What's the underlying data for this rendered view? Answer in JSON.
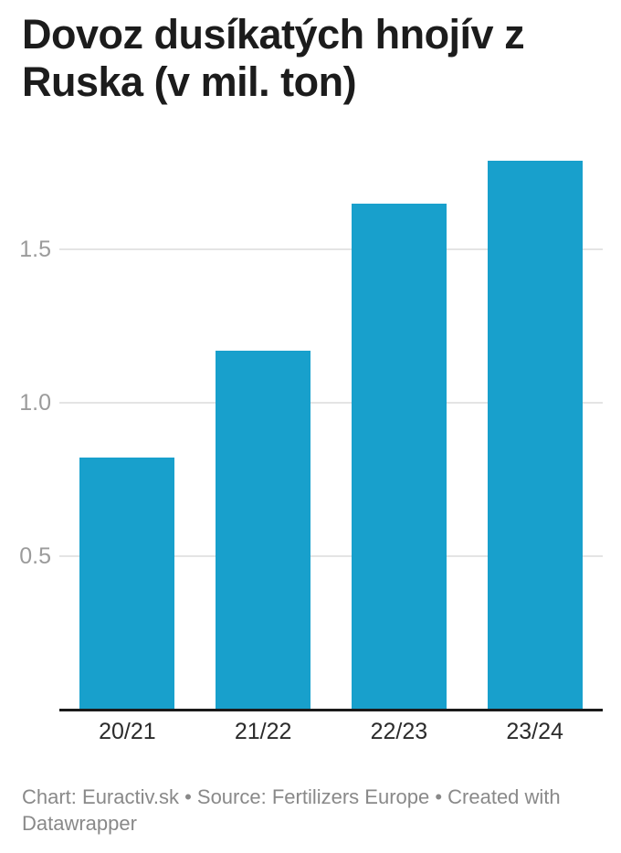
{
  "header": {
    "title": "Dovoz dusíkatých hnojív z Ruska (v mil. ton)",
    "title_lines": [
      "Dovoz dusíkatých hnojív z",
      "Ruska (v mil. ton)"
    ]
  },
  "chart_data": {
    "type": "bar",
    "title": "Dovoz dusíkatých hnojív z Ruska (v mil. ton)",
    "categories": [
      "20/21",
      "21/22",
      "22/23",
      "23/24"
    ],
    "values": [
      0.82,
      1.17,
      1.65,
      1.79
    ],
    "xlabel": "",
    "ylabel": "",
    "unit": "mil. ton",
    "yticks": [
      0.5,
      1.0,
      1.5
    ],
    "ytick_labels": [
      "0.5",
      "1.0",
      "1.5"
    ],
    "ylim": [
      0,
      1.85
    ],
    "grid": true,
    "legend": "none",
    "bar_color": "#18a0cc",
    "gridline_color": "#e4e4e4",
    "axis_line_color": "#1a1a1a",
    "ytick_label_color": "#9b9b9b",
    "xtick_label_color": "#2b2b2b"
  },
  "footer": {
    "text": "Chart: Euractiv.sk • Source: Fertilizers Europe • Created with Datawrapper",
    "lines": [
      "Chart: Euractiv.sk • Source: Fertilizers Europe • Created with",
      "Datawrapper"
    ]
  }
}
